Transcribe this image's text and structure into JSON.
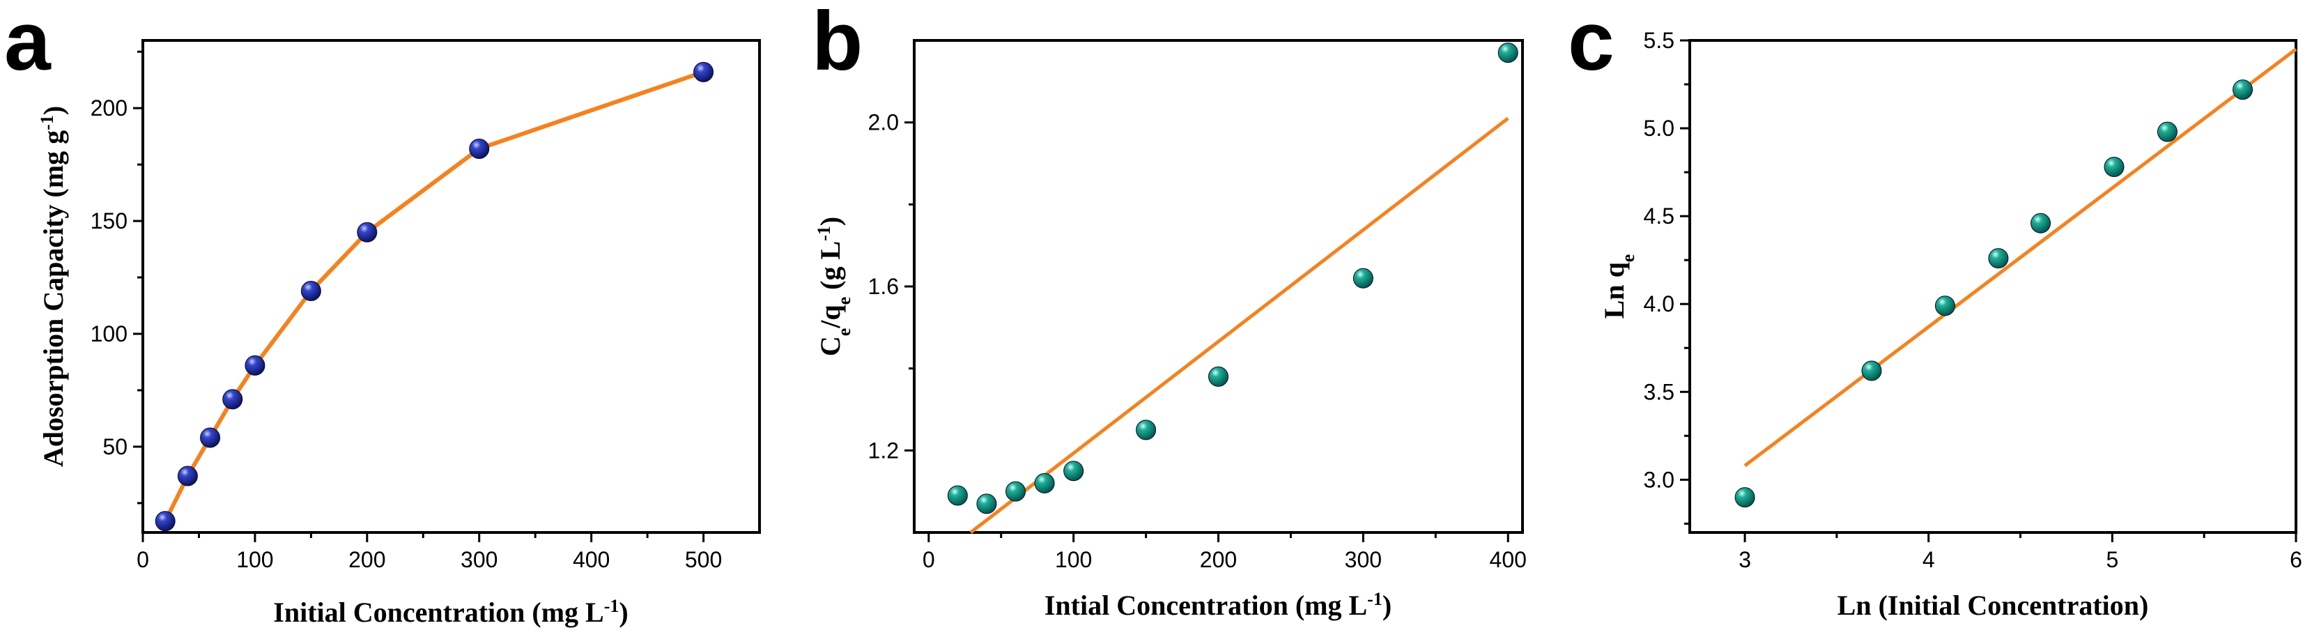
{
  "chart_data": [
    {
      "panel": "a",
      "type": "line",
      "title": "",
      "xlabel": "Initial Concentration (mg L-1)",
      "xlabel_main": "Initial Concentration (mg L",
      "xlabel_sup": "-1",
      "xlabel_end": ")",
      "ylabel": "Adosorption Capacity (mg g-1)",
      "ylabel_main": "Adosorption Capacity (mg g",
      "ylabel_sup": "-1",
      "ylabel_end": ")",
      "xlim": [
        0,
        550
      ],
      "ylim": [
        12,
        230
      ],
      "xticks": [
        0,
        100,
        200,
        300,
        400,
        500
      ],
      "yticks": [
        50,
        100,
        150,
        200
      ],
      "x": [
        20,
        40,
        60,
        80,
        100,
        150,
        200,
        300,
        500
      ],
      "y": [
        17,
        37,
        54,
        71,
        86,
        119,
        145,
        182,
        216
      ],
      "line_color": "#f5821f",
      "marker_color": "#1a237e"
    },
    {
      "panel": "b",
      "type": "scatter",
      "title": "",
      "xlabel": "Intial Concentration (mg L-1)",
      "xlabel_main": "Intial Concentration (mg L",
      "xlabel_sup": "-1",
      "xlabel_end": ")",
      "ylabel": "Ce/qe (g L-1)",
      "xlim": [
        -10,
        410
      ],
      "ylim": [
        1.0,
        2.2
      ],
      "xticks": [
        0,
        100,
        200,
        300,
        400
      ],
      "yticks": [
        1.2,
        1.6,
        2.0
      ],
      "ytick_labels": [
        "1.2",
        "1.6",
        "2.0"
      ],
      "x": [
        20,
        40,
        60,
        80,
        100,
        150,
        200,
        300,
        400
      ],
      "y": [
        1.09,
        1.07,
        1.1,
        1.12,
        1.15,
        1.25,
        1.38,
        1.62,
        2.17
      ],
      "fit_line": {
        "x": [
          29,
          400
        ],
        "y": [
          1.0,
          2.01
        ]
      },
      "line_color": "#f5821f",
      "marker_color": "#00897b"
    },
    {
      "panel": "c",
      "type": "scatter",
      "title": "",
      "xlabel": "Ln (Initial Concentration)",
      "ylabel": "Ln qe",
      "xlim": [
        2.7,
        6.0
      ],
      "ylim": [
        2.7,
        5.5
      ],
      "xticks": [
        3,
        4,
        5,
        6
      ],
      "yticks": [
        3.0,
        3.5,
        4.0,
        4.5,
        5.0,
        5.5
      ],
      "ytick_labels": [
        "3.0",
        "3.5",
        "4.0",
        "4.5",
        "5.0",
        "5.5"
      ],
      "x": [
        3.0,
        3.69,
        4.09,
        4.38,
        4.61,
        5.01,
        5.3,
        5.71
      ],
      "y": [
        2.9,
        3.62,
        3.99,
        4.26,
        4.46,
        4.78,
        4.98,
        5.22
      ],
      "fit_line": {
        "x": [
          3.0,
          6.0
        ],
        "y": [
          3.08,
          5.45
        ]
      },
      "line_color": "#f5821f",
      "marker_color": "#00897b"
    }
  ],
  "panels": [
    {
      "letter": "a"
    },
    {
      "letter": "b"
    },
    {
      "letter": "c"
    }
  ],
  "labels_b": {
    "y_c": "C",
    "y_e": "e",
    "y_slash": "/q",
    "y_e2": "e",
    "y_rest": " (g L",
    "y_sup": "-1",
    "y_end": ")"
  },
  "labels_c": {
    "y_main": "Ln q",
    "y_sub": "e"
  }
}
